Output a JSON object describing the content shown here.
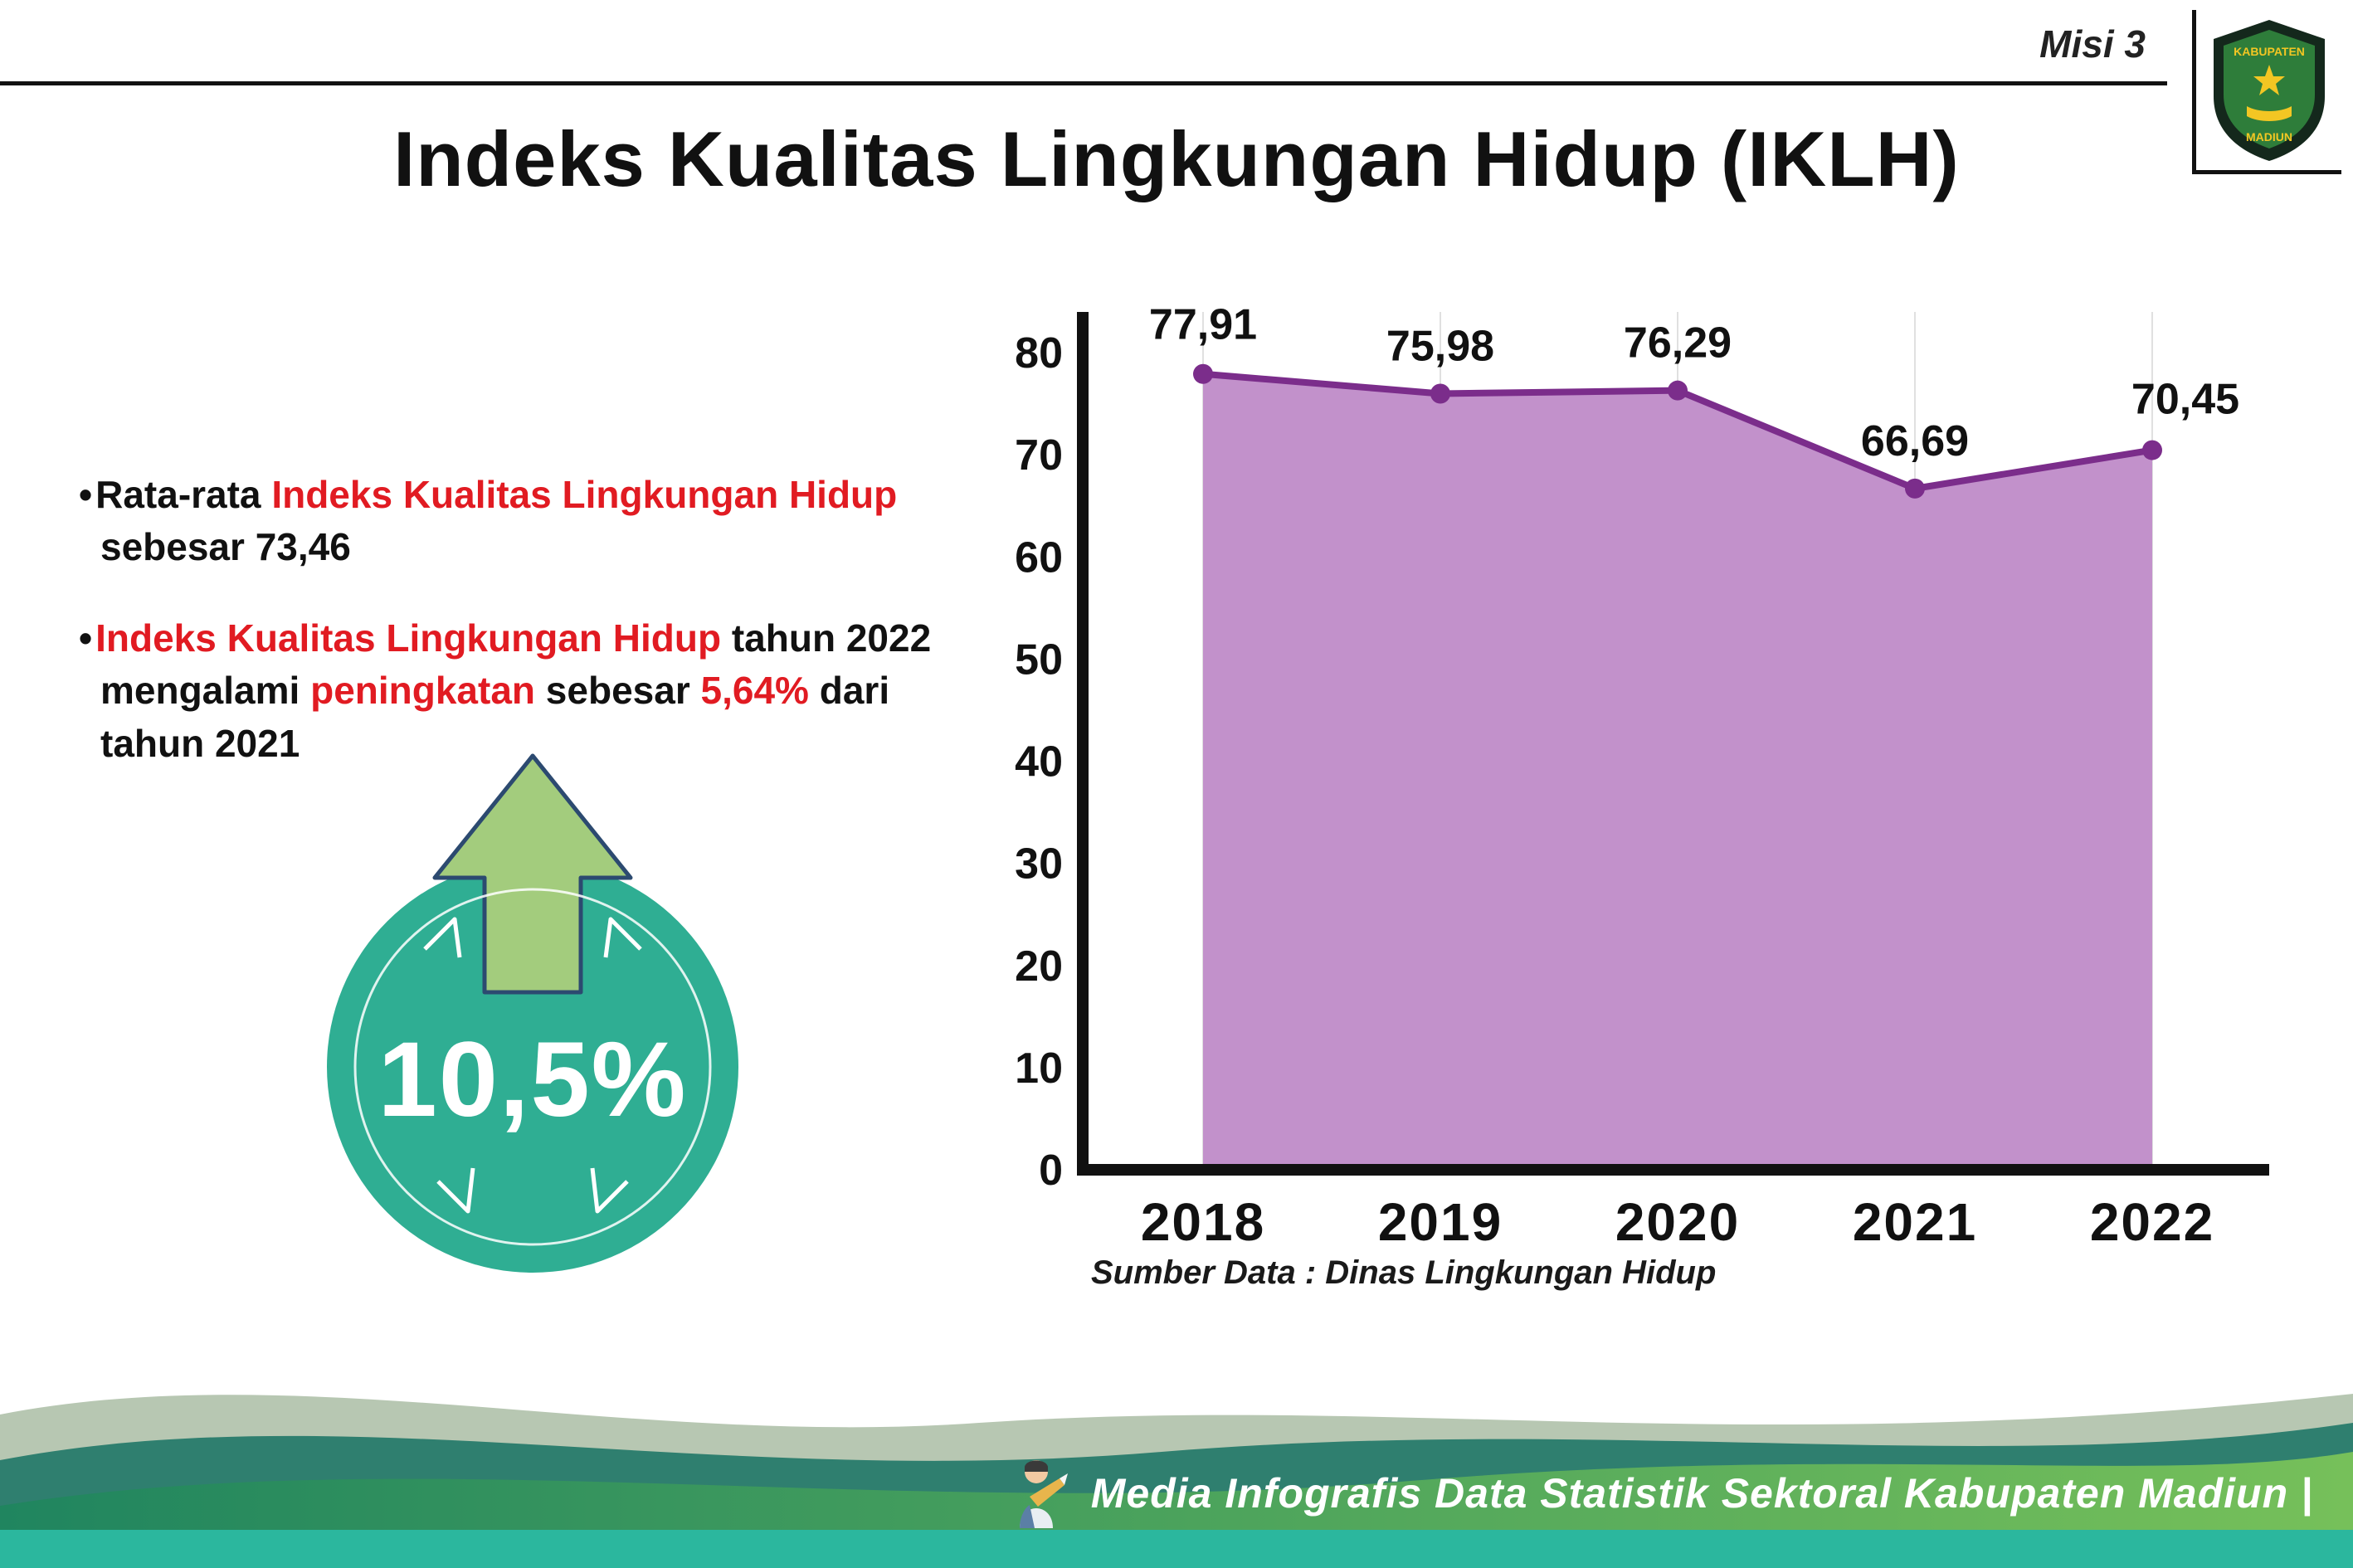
{
  "header": {
    "misi": "Misi 3",
    "title": "Indeks Kualitas Lingkungan Hidup (IKLH)",
    "logo_text_top": "KABUPATEN",
    "logo_text_bottom": "MADIUN"
  },
  "bullet_char": "•",
  "bullets": [
    {
      "segments": [
        {
          "text": "Rata-rata ",
          "color": "black"
        },
        {
          "text": "Indeks Kualitas Lingkungan Hidup",
          "color": "red"
        },
        {
          "text": " sebesar 73,46",
          "color": "black"
        }
      ]
    },
    {
      "segments": [
        {
          "text": "Indeks Kualitas Lingkungan Hidup",
          "color": "red"
        },
        {
          "text": " tahun 2022 mengalami ",
          "color": "black"
        },
        {
          "text": "peningkatan",
          "color": "red"
        },
        {
          "text": " sebesar ",
          "color": "black"
        },
        {
          "text": "5,64%",
          "color": "red"
        },
        {
          "text": " dari tahun 2021",
          "color": "black"
        }
      ]
    }
  ],
  "badge": {
    "value": "10,5%"
  },
  "chart_data": {
    "type": "area",
    "title": "",
    "categories": [
      "2018",
      "2019",
      "2020",
      "2021",
      "2022"
    ],
    "values": [
      77.91,
      75.98,
      76.29,
      66.69,
      70.45
    ],
    "value_labels": [
      "77,91",
      "75,98",
      "76,29",
      "66,69",
      "70,45"
    ],
    "ylim": [
      0,
      80
    ],
    "yticks": [
      0,
      10,
      20,
      30,
      40,
      50,
      60,
      70,
      80
    ],
    "grid": "vertical-light",
    "legend": "none",
    "line_color": "#7b2d8b",
    "fill_color": "#c291cb",
    "source": "Sumber Data : Dinas Lingkungan Hidup"
  },
  "footer": {
    "text": "Media Infografis Data Statistik Sektoral Kabupaten Madiun |"
  },
  "colors": {
    "accent_red": "#e11b22",
    "badge_teal": "#2fae93",
    "arrow_green": "#a3cc7d",
    "line_purple": "#7b2d8b",
    "fill_purple": "#c291cb",
    "wave_sage": "#b7c7b2",
    "wave_dark_teal": "#2f7f6f",
    "wave_green_start": "#20855f",
    "wave_green_end": "#76c05a",
    "wave_bottom_teal": "#2bb79e"
  }
}
